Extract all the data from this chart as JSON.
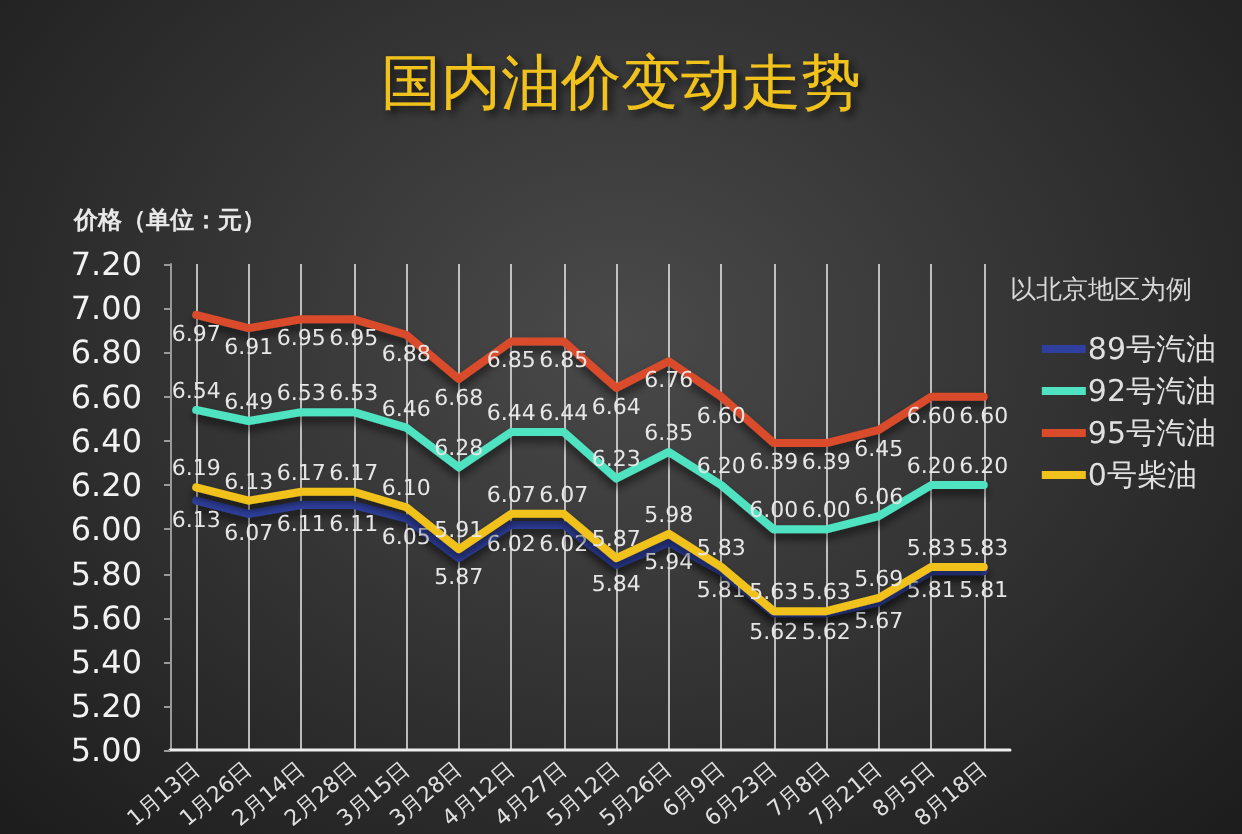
{
  "chart_data": {
    "type": "line",
    "title": "国内油价变动走势",
    "ylabel": "价格（单位：元）",
    "legend_title": "以北京地区为例",
    "categories": [
      "1月13日",
      "1月26日",
      "2月14日",
      "2月28日",
      "3月15日",
      "3月28日",
      "4月12日",
      "4月27日",
      "5月12日",
      "5月26日",
      "6月9日",
      "6月23日",
      "7月8日",
      "7月21日",
      "8月5日",
      "8月18日"
    ],
    "series": [
      {
        "name": "89号汽油",
        "color": "#2e3f9e",
        "values": [
          6.13,
          6.07,
          6.11,
          6.11,
          6.05,
          5.87,
          6.02,
          6.02,
          5.84,
          5.94,
          5.81,
          5.62,
          5.62,
          5.67,
          5.81,
          5.81
        ],
        "value_labels": [
          "6.13",
          "6.07",
          "6.11",
          "6.11",
          "6.05",
          "5.87",
          "6.02",
          "6.02",
          "5.84",
          "5.94",
          "5.81",
          "5.62",
          "5.62",
          "5.67",
          "5.81",
          "5.81"
        ]
      },
      {
        "name": "92号汽油",
        "color": "#4fe3c1",
        "values": [
          6.54,
          6.49,
          6.53,
          6.53,
          6.46,
          6.28,
          6.44,
          6.44,
          6.23,
          6.35,
          6.2,
          6.0,
          6.0,
          6.06,
          6.2,
          6.2
        ],
        "value_labels": [
          "6.54",
          "6.49",
          "6.53",
          "6.53",
          "6.46",
          "6.28",
          "6.44",
          "6.44",
          "6.23",
          "6.35",
          "6.20",
          "6.00",
          "6.00",
          "6.06",
          "6.20",
          "6.20"
        ]
      },
      {
        "name": "95号汽油",
        "color": "#d94b2b",
        "values": [
          6.97,
          6.91,
          6.95,
          6.95,
          6.88,
          6.68,
          6.85,
          6.85,
          6.64,
          6.76,
          6.6,
          6.39,
          6.39,
          6.45,
          6.6,
          6.6
        ],
        "value_labels": [
          "6.97",
          "6.91",
          "6.95",
          "6.95",
          "6.88",
          "6.68",
          "6.85",
          "6.85",
          "6.64",
          "6.76",
          "6.60",
          "6.39",
          "6.39",
          "6.45",
          "6.60",
          "6.60"
        ]
      },
      {
        "name": "0号柴油",
        "color": "#f1c21c",
        "values": [
          6.19,
          6.13,
          6.17,
          6.17,
          6.1,
          5.91,
          6.07,
          6.07,
          5.87,
          5.98,
          5.83,
          5.63,
          5.63,
          5.69,
          5.83,
          5.83
        ],
        "value_labels": [
          "6.19",
          "6.13",
          "6.17",
          "6.17",
          "6.10",
          "5.91",
          "6.07",
          "6.07",
          "5.87",
          "5.98",
          "5.83",
          "5.63",
          "5.63",
          "5.69",
          "5.83",
          "5.83"
        ]
      }
    ],
    "ylim": [
      5,
      7.2
    ],
    "yticks": [
      {
        "value": 5,
        "label": "5.00"
      },
      {
        "value": 5.2,
        "label": "5.20"
      },
      {
        "value": 5.4,
        "label": "5.40"
      },
      {
        "value": 5.6,
        "label": "5.60"
      },
      {
        "value": 5.8,
        "label": "5.80"
      },
      {
        "value": 6,
        "label": "6.00"
      },
      {
        "value": 6.2,
        "label": "6.20"
      },
      {
        "value": 6.4,
        "label": "6.40"
      },
      {
        "value": 6.6,
        "label": "6.60"
      },
      {
        "value": 6.8,
        "label": "6.80"
      },
      {
        "value": 7,
        "label": "7.00"
      },
      {
        "value": 7.2,
        "label": "7.20"
      }
    ],
    "grid": "x",
    "legend": "top right",
    "marker": "none",
    "line_style": "solid"
  }
}
